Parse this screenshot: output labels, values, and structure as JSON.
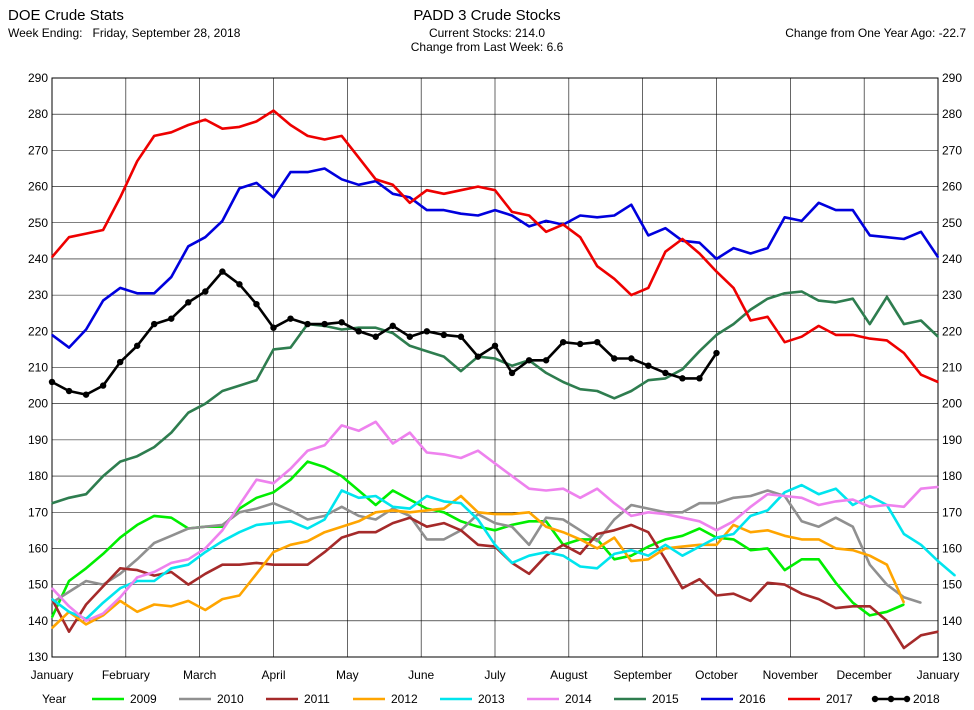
{
  "header": {
    "left_title": "DOE Crude Stats",
    "week_ending_label": "Week Ending:",
    "week_ending_value": "Friday, September 28, 2018",
    "center_title": "PADD 3 Crude Stocks",
    "current_stocks": "Current Stocks: 214.0",
    "change_last_week": "Change from Last Week:   6.6",
    "change_year_ago": "Change from One Year Ago: -22.7"
  },
  "chart_data": {
    "type": "line",
    "ylim": [
      130,
      290
    ],
    "yticks": [
      130,
      140,
      150,
      160,
      170,
      180,
      190,
      200,
      210,
      220,
      230,
      240,
      250,
      260,
      270,
      280,
      290
    ],
    "x_tick_labels": [
      "January",
      "February",
      "March",
      "April",
      "May",
      "June",
      "July",
      "August",
      "September",
      "October",
      "November",
      "December",
      "January"
    ],
    "legend_label": "Year",
    "grid": true,
    "legend_position": "bottom",
    "series": [
      {
        "name": "2009",
        "color": "#00ee00",
        "markers": false,
        "values": [
          141,
          151,
          154.5,
          158.5,
          163,
          166.5,
          169,
          168.5,
          165.5,
          166,
          166,
          171,
          174,
          175.5,
          179,
          184,
          182.5,
          180,
          176,
          172,
          176,
          173.5,
          171,
          170,
          167.5,
          166,
          165,
          166.5,
          167.5,
          167.5,
          161,
          162.5,
          162.5,
          157,
          158,
          160.5,
          162.5,
          163.5,
          165.5,
          163,
          162.5,
          159.5,
          160,
          154,
          157,
          157,
          150.5,
          145,
          141.5,
          142.5,
          144.5
        ]
      },
      {
        "name": "2010",
        "color": "#909090",
        "markers": false,
        "values": [
          145,
          148,
          151,
          150,
          153,
          157,
          161.5,
          163.5,
          165.5,
          166,
          166.5,
          170,
          171,
          172.5,
          170.5,
          168,
          169,
          171.5,
          169,
          168,
          171,
          169,
          162.5,
          162.5,
          165,
          169.5,
          167,
          166,
          161,
          168.5,
          168,
          165,
          162,
          168,
          172,
          171,
          170,
          170,
          172.5,
          172.5,
          174,
          174.5,
          176,
          174.5,
          167.5,
          166,
          168.5,
          166,
          155.5,
          150,
          146.5,
          145
        ]
      },
      {
        "name": "2011",
        "color": "#a52a2a",
        "markers": false,
        "values": [
          146,
          137,
          144.5,
          149.5,
          154.5,
          154,
          152.5,
          153.5,
          150,
          153,
          155.5,
          155.5,
          156,
          155.5,
          155.5,
          155.5,
          159,
          163,
          164.5,
          164.5,
          167,
          168.5,
          166,
          167,
          165,
          161,
          160.5,
          156,
          153,
          158,
          161,
          158.5,
          164,
          165,
          166.5,
          164.5,
          157,
          149,
          151.5,
          147,
          147.5,
          145.5,
          150.5,
          150,
          147.5,
          146,
          143.5,
          144,
          144,
          140,
          132.5,
          136,
          137
        ]
      },
      {
        "name": "2012",
        "color": "#ffa500",
        "markers": false,
        "values": [
          138,
          142.5,
          139,
          141.5,
          145.5,
          142.5,
          144.5,
          144,
          145.5,
          143,
          146,
          147,
          153,
          159,
          161,
          162,
          164.5,
          166,
          167.5,
          170,
          170.5,
          170,
          170.5,
          171,
          174.5,
          170,
          169.5,
          169.5,
          170,
          166,
          164.5,
          162.5,
          160,
          163,
          156.5,
          157,
          160,
          160.5,
          161,
          161,
          166.5,
          164.5,
          165,
          163.5,
          162.5,
          162.5,
          160,
          159.5,
          158,
          155.5,
          145
        ]
      },
      {
        "name": "2013",
        "color": "#00e5ee",
        "markers": false,
        "values": [
          146,
          142.5,
          140.5,
          145,
          149,
          151,
          151,
          154.5,
          155.5,
          159,
          162,
          164.5,
          166.5,
          167,
          167.5,
          165.5,
          168,
          176,
          174,
          174.5,
          171.5,
          171,
          174.5,
          173,
          172.5,
          168,
          161,
          156,
          158,
          159,
          158,
          155,
          154.5,
          158.5,
          159.5,
          158,
          161,
          158,
          160.5,
          163,
          164,
          169,
          170.5,
          175.5,
          177.5,
          175,
          176.5,
          172,
          174.5,
          172,
          164,
          161,
          156.5,
          152.5
        ]
      },
      {
        "name": "2014",
        "color": "#ee82ee",
        "markers": false,
        "values": [
          149,
          144,
          140,
          142,
          146.5,
          152,
          153.5,
          156,
          157,
          160,
          165,
          172,
          179,
          178,
          182,
          187,
          188.5,
          194,
          192.5,
          195,
          189,
          192,
          186.5,
          186,
          185,
          187,
          183.5,
          180,
          176.5,
          176,
          176.5,
          174,
          176.5,
          172.5,
          169,
          170,
          169.5,
          168.5,
          167.5,
          165,
          167.5,
          171.5,
          175,
          174.5,
          174,
          172,
          173,
          173.5,
          171.5,
          172,
          171.5,
          176.5,
          177
        ]
      },
      {
        "name": "2015",
        "color": "#2e7d4f",
        "markers": false,
        "values": [
          172.5,
          174,
          175,
          180,
          184,
          185.5,
          188,
          192,
          197.5,
          200,
          203.5,
          205,
          206.5,
          215,
          215.5,
          222,
          221.5,
          220.5,
          221,
          221,
          219.5,
          216,
          214.5,
          213,
          209,
          213,
          212.5,
          210.5,
          212,
          208.5,
          206,
          204,
          203.5,
          201.5,
          203.5,
          206.5,
          207,
          209.5,
          214.5,
          219,
          222,
          226,
          229,
          230.5,
          231,
          228.5,
          228,
          229,
          222,
          229.5,
          222,
          223,
          218.5
        ]
      },
      {
        "name": "2016",
        "color": "#0000dd",
        "markers": false,
        "values": [
          219,
          215.5,
          220.5,
          228.5,
          232,
          230.5,
          230.5,
          235,
          243.5,
          246,
          250.5,
          259.5,
          261,
          257,
          264,
          264,
          265,
          262,
          260.5,
          261.5,
          258,
          257,
          253.5,
          253.5,
          252.5,
          252,
          253.5,
          252,
          249,
          250.5,
          249.5,
          252,
          251.5,
          252,
          255,
          246.5,
          248.5,
          245,
          244.5,
          240,
          243,
          241.5,
          243,
          251.5,
          250.5,
          255.5,
          253.5,
          253.5,
          246.5,
          246,
          245.5,
          247.5,
          240.5
        ]
      },
      {
        "name": "2017",
        "color": "#ee0000",
        "markers": false,
        "values": [
          240.5,
          246,
          247,
          248,
          257,
          267,
          274,
          275,
          277,
          278.5,
          276,
          276.5,
          278,
          281,
          277,
          274,
          273,
          274,
          268,
          262,
          260.5,
          255.5,
          259,
          258,
          259,
          260,
          259,
          253,
          252,
          247.5,
          249.5,
          246,
          238,
          234.5,
          230,
          232,
          242,
          245.5,
          241.5,
          236.5,
          232,
          223,
          224,
          217,
          218.5,
          221.5,
          219,
          219,
          218,
          217.5,
          214,
          208,
          206
        ]
      },
      {
        "name": "2018",
        "color": "#000000",
        "markers": true,
        "values": [
          206,
          203.5,
          202.5,
          205,
          211.5,
          216,
          222,
          223.5,
          228,
          231,
          236.5,
          233,
          227.5,
          221,
          223.5,
          222,
          222,
          222.5,
          220,
          218.5,
          221.5,
          218.5,
          220,
          219,
          218.5,
          213,
          216,
          208.5,
          212,
          212,
          217,
          216.5,
          217,
          212.5,
          212.5,
          210.5,
          208.5,
          207,
          207,
          214
        ]
      }
    ]
  }
}
